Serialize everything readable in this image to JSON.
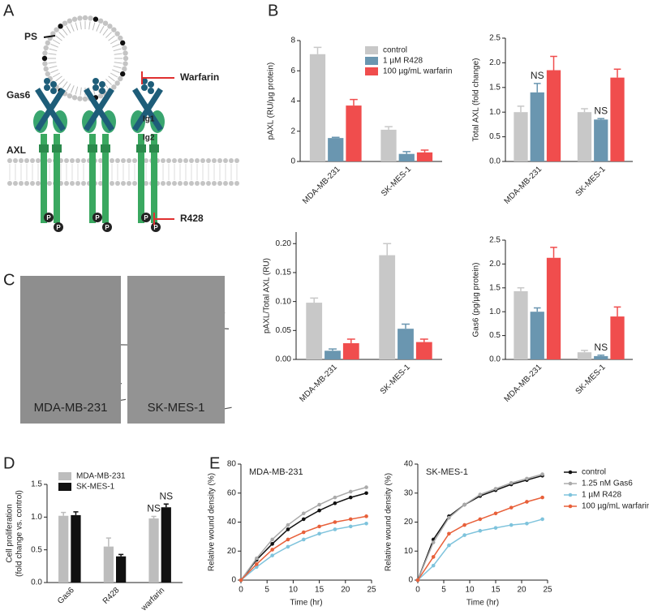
{
  "figure": {
    "panel_labels": [
      "A",
      "B",
      "C",
      "D",
      "E"
    ],
    "diagram": {
      "ps": "PS",
      "gas6": "Gas6",
      "warfarin": "Warfarin",
      "ig1": "Ig1",
      "ig2": "Ig2",
      "axl": "AXL",
      "r428": "R428",
      "phospho": "P"
    },
    "images": [
      "MDA-MB-231",
      "SK-MES-1"
    ]
  },
  "chart_data": [
    {
      "type": "bar",
      "ylabel": [
        "pAXL (RU/µg protein)"
      ],
      "categories": [
        "MDA-MB-231",
        "SK-MES-1"
      ],
      "series": [
        {
          "name": "control",
          "color": "#c8c8c8",
          "values": [
            7.1,
            2.1
          ],
          "errors": [
            0.45,
            0.2
          ]
        },
        {
          "name": "1 µM R428",
          "color": "#6a96b0",
          "values": [
            1.55,
            0.5
          ],
          "errors": [
            0.05,
            0.15
          ]
        },
        {
          "name": "100 µg/mL warfarin",
          "color": "#f04d4d",
          "values": [
            3.7,
            0.6
          ],
          "errors": [
            0.4,
            0.15
          ]
        }
      ],
      "ylim": [
        0,
        8
      ],
      "yticks": [
        0,
        2,
        4,
        6,
        8
      ],
      "legend": "upper right"
    },
    {
      "type": "bar",
      "ylabel": [
        "Total AXL (fold change)"
      ],
      "categories": [
        "MDA-MB-231",
        "SK-MES-1"
      ],
      "series": [
        {
          "name": "control",
          "color": "#c8c8c8",
          "values": [
            1.0,
            1.0
          ],
          "errors": [
            0.12,
            0.07
          ]
        },
        {
          "name": "1 µM R428",
          "color": "#6a96b0",
          "values": [
            1.4,
            0.85
          ],
          "errors": [
            0.18,
            0.02
          ]
        },
        {
          "name": "100 µg/mL warfarin",
          "color": "#f04d4d",
          "values": [
            1.85,
            1.7
          ],
          "errors": [
            0.28,
            0.17
          ]
        }
      ],
      "ylim": [
        0,
        2.5
      ],
      "yticks": [
        {
          "value": 0,
          "label": "0.0"
        },
        {
          "value": 0.5,
          "label": "0.5"
        },
        {
          "value": 1,
          "label": "1.0"
        },
        {
          "value": 1.5,
          "label": "1.5"
        },
        {
          "value": 2,
          "label": "2.0"
        },
        {
          "value": 2.5,
          "label": "2.5"
        }
      ],
      "legend": "none",
      "annotations": [
        {
          "text": "NS",
          "category": "MDA-MB-231",
          "series": "1 µM R428"
        },
        {
          "text": "NS",
          "category": "SK-MES-1",
          "series": "1 µM R428"
        }
      ]
    },
    {
      "type": "bar",
      "ylabel": [
        "pAXL/Total AXL (RU)"
      ],
      "categories": [
        "MDA-MB-231",
        "SK-MES-1"
      ],
      "series": [
        {
          "name": "control",
          "color": "#c8c8c8",
          "values": [
            0.098,
            0.18
          ],
          "errors": [
            0.008,
            0.02
          ]
        },
        {
          "name": "1 µM R428",
          "color": "#6a96b0",
          "values": [
            0.015,
            0.053
          ],
          "errors": [
            0.003,
            0.008
          ]
        },
        {
          "name": "100 µg/mL warfarin",
          "color": "#f04d4d",
          "values": [
            0.028,
            0.03
          ],
          "errors": [
            0.007,
            0.005
          ]
        }
      ],
      "ylim": [
        0,
        0.22
      ],
      "yticks": [
        {
          "value": 0,
          "label": "0.00"
        },
        {
          "value": 0.05,
          "label": "0.05"
        },
        {
          "value": 0.1,
          "label": "0.10"
        },
        {
          "value": 0.15,
          "label": "0.15"
        },
        {
          "value": 0.2,
          "label": "0.20"
        }
      ],
      "legend": "none"
    },
    {
      "type": "bar",
      "ylabel": [
        "Gas6 (pg/µg protein)"
      ],
      "categories": [
        "MDA-MB-231",
        "SK-MES-1"
      ],
      "series": [
        {
          "name": "control",
          "color": "#c8c8c8",
          "values": [
            1.43,
            0.15
          ],
          "errors": [
            0.07,
            0.04
          ]
        },
        {
          "name": "1 µM R428",
          "color": "#6a96b0",
          "values": [
            1.0,
            0.07
          ],
          "errors": [
            0.08,
            0.02
          ]
        },
        {
          "name": "100 µg/mL warfarin",
          "color": "#f04d4d",
          "values": [
            2.13,
            0.9
          ],
          "errors": [
            0.22,
            0.2
          ]
        }
      ],
      "ylim": [
        0,
        2.5
      ],
      "yticks": [
        {
          "value": 0,
          "label": "0.0"
        },
        {
          "value": 0.5,
          "label": "0.5"
        },
        {
          "value": 1,
          "label": "1.0"
        },
        {
          "value": 1.5,
          "label": "1.5"
        },
        {
          "value": 2,
          "label": "2.0"
        },
        {
          "value": 2.5,
          "label": "2.5"
        }
      ],
      "legend": "none",
      "annotations": [
        {
          "text": "NS",
          "category": "SK-MES-1",
          "series": "1 µM R428"
        }
      ]
    },
    {
      "type": "bar",
      "ylabel": [
        "Cell proliferation",
        "(fold change vs. control)"
      ],
      "categories": [
        "Gas6",
        "R428",
        "warfarin"
      ],
      "series": [
        {
          "name": "MDA-MB-231",
          "color": "#bdbdbd",
          "values": [
            1.02,
            0.55,
            0.98
          ],
          "errors": [
            0.05,
            0.13,
            0.03
          ]
        },
        {
          "name": "SK-MES-1",
          "color": "#111111",
          "values": [
            1.03,
            0.4,
            1.15
          ],
          "errors": [
            0.05,
            0.03,
            0.05
          ]
        }
      ],
      "ylim": [
        0,
        1.5
      ],
      "yticks": [
        {
          "value": 0,
          "label": "0.0"
        },
        {
          "value": 0.5,
          "label": "0.5"
        },
        {
          "value": 1,
          "label": "1.0"
        },
        {
          "value": 1.5,
          "label": "1.5"
        }
      ],
      "legend": "upper left",
      "annotations": [
        {
          "text": "NS",
          "category": "warfarin",
          "series": "MDA-MB-231"
        },
        {
          "text": "NS",
          "category": "warfarin",
          "series": "SK-MES-1"
        }
      ]
    },
    {
      "type": "line",
      "title": "MDA-MB-231",
      "ylabel": [
        "Relative wound density (%)"
      ],
      "xlabel": "Time (hr)",
      "x": [
        0,
        3,
        6,
        9,
        12,
        15,
        18,
        21,
        24
      ],
      "series": [
        {
          "name": "control",
          "color": "#111111",
          "values": [
            0,
            14,
            25,
            35,
            42,
            48,
            53,
            57,
            60
          ]
        },
        {
          "name": "1.25 nM Gas6",
          "color": "#aaaaaa",
          "values": [
            0,
            15,
            28,
            38,
            46,
            52,
            57,
            61,
            64
          ]
        },
        {
          "name": "1 µM R428",
          "color": "#7ec3dc",
          "values": [
            0,
            9,
            17,
            23,
            28,
            32,
            35,
            37,
            39
          ]
        },
        {
          "name": "100 µg/mL warfarin",
          "color": "#e8603a",
          "values": [
            0,
            11,
            21,
            28,
            33,
            37,
            40,
            42,
            44
          ]
        }
      ],
      "xlim": [
        0,
        25
      ],
      "xticks": [
        0,
        5,
        10,
        15,
        20,
        25
      ],
      "ylim": [
        0,
        80
      ],
      "yticks": [
        0,
        20,
        40,
        60,
        80
      ],
      "legend": "none"
    },
    {
      "type": "line",
      "title": "SK-MES-1",
      "ylabel": [
        "Relative wound density (%)"
      ],
      "xlabel": "Time (hr)",
      "x": [
        0,
        3,
        6,
        9,
        12,
        15,
        18,
        21,
        24
      ],
      "series": [
        {
          "name": "control",
          "color": "#111111",
          "values": [
            0,
            14,
            22,
            26,
            29,
            31,
            33,
            34.5,
            36
          ]
        },
        {
          "name": "1.25 nM Gas6",
          "color": "#aaaaaa",
          "values": [
            0,
            13,
            21.5,
            26,
            29.5,
            31.5,
            33.5,
            35,
            36.5
          ]
        },
        {
          "name": "1 µM R428",
          "color": "#7ec3dc",
          "values": [
            0,
            5,
            12,
            15.5,
            17,
            18,
            19,
            19.5,
            21
          ]
        },
        {
          "name": "100 µg/mL warfarin",
          "color": "#e8603a",
          "values": [
            0,
            8,
            16,
            19,
            21,
            23,
            25,
            27,
            28.5
          ]
        }
      ],
      "xlim": [
        0,
        25
      ],
      "xticks": [
        0,
        5,
        10,
        15,
        20,
        25
      ],
      "ylim": [
        0,
        40
      ],
      "yticks": [
        0,
        10,
        20,
        30,
        40
      ],
      "legend": "right"
    }
  ]
}
